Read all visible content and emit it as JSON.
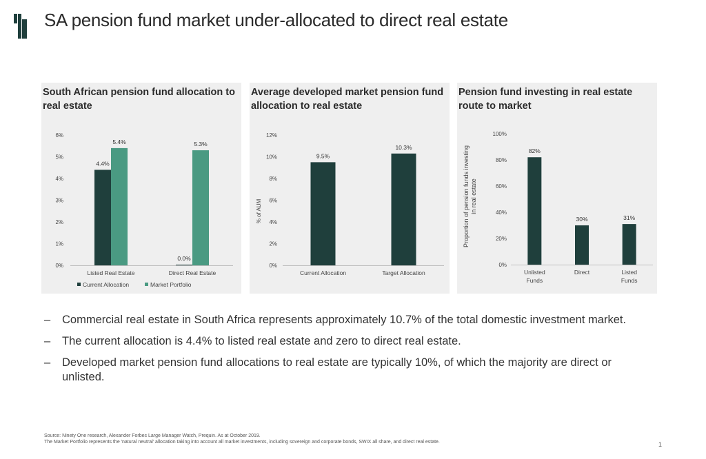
{
  "slide": {
    "title": "SA pension fund market under-allocated to direct real estate",
    "page_number": "1"
  },
  "colors": {
    "dark_green": "#1f3f3c",
    "light_green": "#4a9a82",
    "panel_bg": "#efefef",
    "axis_text": "#444444"
  },
  "bullets": [
    "Commercial real estate in South Africa represents approximately 10.7% of the total domestic investment market.",
    "The current allocation is 4.4% to listed real estate and zero to direct real estate.",
    "Developed market pension fund allocations to real estate are typically 10%, of which the majority are direct or unlisted."
  ],
  "bullet_marker": "–",
  "source": {
    "line1": "Source: Ninety One research,  Alexander Forbes Large Manager Watch, Prequin. As at October 2019.",
    "line2": "The Market Portfolio represents  the 'natural neutral' allocation taking into account all market investments, including sovereign and corporate bonds, SWIX all share, and direct  real estate."
  },
  "chart_data": [
    {
      "type": "bar",
      "title": "South African pension fund allocation to real estate",
      "categories": [
        "Listed Real Estate",
        "Direct Real Estate"
      ],
      "series": [
        {
          "name": "Current Allocation",
          "values": [
            4.4,
            0.0
          ],
          "labels": [
            "4.4%",
            "0.0%"
          ],
          "color": "#1f3f3c"
        },
        {
          "name": "Market Portfolio",
          "values": [
            5.4,
            5.3
          ],
          "labels": [
            "5.4%",
            "5.3%"
          ],
          "color": "#4a9a82"
        }
      ],
      "ylim": [
        0,
        6
      ],
      "yticks": [
        "0%",
        "1%",
        "2%",
        "3%",
        "4%",
        "5%",
        "6%"
      ],
      "ylabel": "",
      "legend": "bottom"
    },
    {
      "type": "bar",
      "title": "Average developed market pension fund allocation to real estate",
      "categories": [
        "Current Allocation",
        "Target Allocation"
      ],
      "series": [
        {
          "values": [
            9.5,
            10.3
          ],
          "labels": [
            "9.5%",
            "10.3%"
          ],
          "color": "#1f3f3c"
        }
      ],
      "ylim": [
        0,
        12
      ],
      "yticks": [
        "0%",
        "2%",
        "4%",
        "6%",
        "8%",
        "10%",
        "12%"
      ],
      "ylabel": "% of AUM"
    },
    {
      "type": "bar",
      "title": "Pension fund investing in real estate route to market",
      "categories": [
        "Unlisted Funds",
        "Direct",
        "Listed Funds"
      ],
      "series": [
        {
          "values": [
            82,
            30,
            31
          ],
          "labels": [
            "82%",
            "30%",
            "31%"
          ],
          "color": "#1f3f3c"
        }
      ],
      "ylim": [
        0,
        100
      ],
      "yticks": [
        "0%",
        "20%",
        "40%",
        "60%",
        "80%",
        "100%"
      ],
      "ylabel": "Proportion of pension funds investing in real estate"
    }
  ]
}
